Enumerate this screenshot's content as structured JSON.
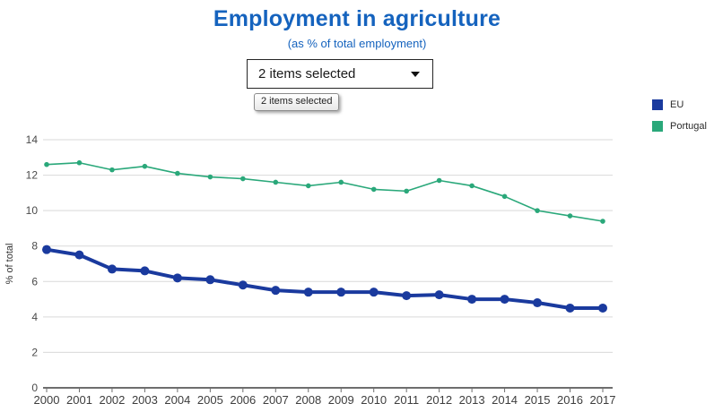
{
  "page": {
    "title": "Employment in agriculture",
    "subtitle": "(as % of total employment)"
  },
  "dropdown": {
    "value": "2 items selected",
    "tooltip": "2 items selected"
  },
  "colors": {
    "title_blue": "#1563be",
    "grid": "#d9d9d9",
    "axis": "#6e6e6e",
    "y_tick_text": "#4a4a4a",
    "x_tick_text": "#3d3d3d",
    "axis_title_text": "#333333"
  },
  "chart_data": {
    "type": "line",
    "x": [
      2000,
      2001,
      2002,
      2003,
      2004,
      2005,
      2006,
      2007,
      2008,
      2009,
      2010,
      2011,
      2012,
      2013,
      2014,
      2015,
      2016,
      2017
    ],
    "series": [
      {
        "name": "EU",
        "color": "#1a3a9e",
        "line_width": 4,
        "marker_radius": 5,
        "values": [
          7.8,
          7.5,
          6.7,
          6.6,
          6.2,
          6.1,
          5.8,
          5.5,
          5.4,
          5.4,
          5.4,
          5.2,
          5.25,
          5.0,
          5.0,
          4.8,
          4.5,
          4.5
        ]
      },
      {
        "name": "Portugal",
        "color": "#2aa87a",
        "line_width": 1.6,
        "marker_radius": 2.8,
        "values": [
          12.6,
          12.7,
          12.3,
          12.5,
          12.1,
          11.9,
          11.8,
          11.6,
          11.4,
          11.6,
          11.2,
          11.1,
          11.7,
          11.4,
          10.8,
          10.0,
          9.7,
          9.4
        ]
      }
    ],
    "title": "Employment in agriculture",
    "subtitle": "(as % of total employment)",
    "xlabel": "",
    "ylabel": "% of total",
    "ylim": [
      0,
      14
    ],
    "yticks": [
      0,
      2,
      4,
      6,
      8,
      10,
      12,
      14
    ],
    "grid": true,
    "legend_position": "top-right"
  }
}
